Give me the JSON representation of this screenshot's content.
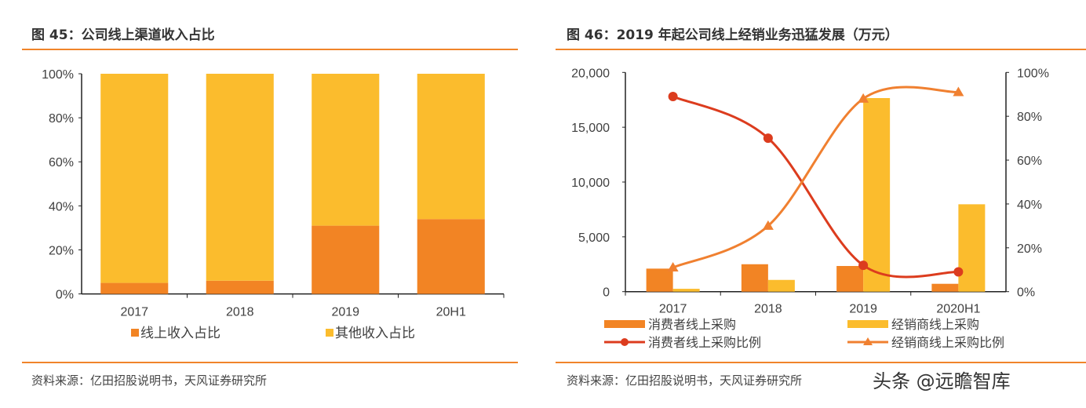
{
  "left": {
    "title": "图 45：公司线上渠道收入占比",
    "source": "资料来源：亿田招股说明书，天风证券研究所"
  },
  "right": {
    "title": "图 46：2019 年起公司线上经销业务迅猛发展（万元）",
    "source": "资料来源：亿田招股说明书，天风证券研究所"
  },
  "watermark": "头条 @远瞻智库",
  "colors": {
    "orange": "#f28424",
    "yellow": "#fbbc2d",
    "red_line": "#dc3c1e",
    "orange_line": "#f08030",
    "rule": "#f0842a"
  },
  "chart_data": [
    {
      "type": "bar",
      "stacked": true,
      "categories": [
        "2017",
        "2018",
        "2019",
        "20H1"
      ],
      "series": [
        {
          "name": "线上收入占比",
          "values": [
            5,
            6,
            31,
            34
          ]
        },
        {
          "name": "其他收入占比",
          "values": [
            95,
            94,
            69,
            66
          ]
        }
      ],
      "ylim": [
        0,
        100
      ],
      "yticks": [
        "0%",
        "20%",
        "40%",
        "60%",
        "80%",
        "100%"
      ],
      "legend": "bottom"
    },
    {
      "type": "bar+line",
      "categories": [
        "2017",
        "2018",
        "2019",
        "2020H1"
      ],
      "bars": [
        {
          "name": "消费者线上采购",
          "values": [
            2100,
            2500,
            2340,
            715
          ]
        },
        {
          "name": "经销商线上采购",
          "values": [
            260,
            1070,
            17660,
            7970
          ]
        }
      ],
      "lines": [
        {
          "name": "消费者线上采购比例",
          "values": [
            89,
            70,
            12,
            9
          ]
        },
        {
          "name": "经销商线上采购比例",
          "values": [
            11,
            30,
            88,
            91
          ]
        }
      ],
      "ylim": [
        0,
        20000
      ],
      "yticks": [
        "0",
        "5,000",
        "10,000",
        "15,000",
        "20,000"
      ],
      "y2lim": [
        0,
        100
      ],
      "y2ticks": [
        "0%",
        "20%",
        "40%",
        "60%",
        "80%",
        "100%"
      ],
      "legend": "bottom"
    }
  ]
}
